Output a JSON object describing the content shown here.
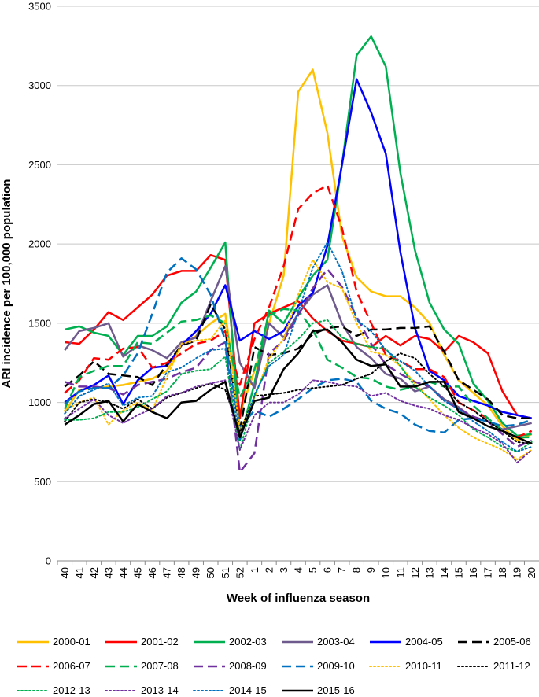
{
  "chart_data": {
    "type": "line",
    "title": "",
    "xlabel": "Week of influenza season",
    "ylabel": "ARI incidence per 100,000 population",
    "ylim": [
      0,
      3500
    ],
    "yticks": [
      0,
      500,
      1000,
      1500,
      2000,
      2500,
      3000,
      3500
    ],
    "grid": "horizontal",
    "legend_position": "bottom",
    "categories": [
      "40",
      "41",
      "42",
      "43",
      "44",
      "45",
      "46",
      "47",
      "48",
      "49",
      "50",
      "51",
      "52",
      "1",
      "2",
      "3",
      "4",
      "5",
      "6",
      "7",
      "8",
      "9",
      "10",
      "11",
      "12",
      "13",
      "14",
      "15",
      "16",
      "17",
      "18",
      "19",
      "20"
    ],
    "series": [
      {
        "name": "2000-01",
        "color": "#FFC000",
        "dash": "solid",
        "width": 2.5,
        "values": [
          940,
          1080,
          1090,
          1100,
          1110,
          1130,
          1150,
          1200,
          1360,
          1420,
          1500,
          1560,
          930,
          1200,
          1500,
          1800,
          2960,
          3100,
          2700,
          2050,
          1790,
          1700,
          1670,
          1670,
          1600,
          1500,
          1300,
          1140,
          1060,
          980,
          850,
          760,
          800
        ]
      },
      {
        "name": "2001-02",
        "color": "#FF0000",
        "dash": "solid",
        "width": 2.5,
        "values": [
          1380,
          1370,
          1460,
          1570,
          1520,
          1600,
          1680,
          1800,
          1830,
          1830,
          1930,
          1900,
          900,
          1500,
          1560,
          1600,
          1640,
          1530,
          1450,
          1390,
          1370,
          1350,
          1420,
          1360,
          1420,
          1400,
          1320,
          1420,
          1380,
          1310,
          1070,
          920,
          900
        ]
      },
      {
        "name": "2002-03",
        "color": "#00B050",
        "dash": "solid",
        "width": 2.5,
        "values": [
          1460,
          1480,
          1440,
          1420,
          1300,
          1420,
          1420,
          1480,
          1630,
          1700,
          1850,
          2010,
          760,
          1120,
          1580,
          1500,
          1660,
          1800,
          1900,
          2500,
          3190,
          3310,
          3120,
          2450,
          1960,
          1630,
          1460,
          1370,
          1120,
          1010,
          870,
          790,
          800
        ]
      },
      {
        "name": "2003-04",
        "color": "#6E5A8C",
        "dash": "solid",
        "width": 2.5,
        "values": [
          1330,
          1450,
          1470,
          1500,
          1290,
          1360,
          1330,
          1280,
          1380,
          1410,
          1640,
          1860,
          1250,
          1090,
          1500,
          1410,
          1560,
          1680,
          1740,
          1500,
          1350,
          1280,
          1180,
          1150,
          1070,
          1100,
          1020,
          970,
          900,
          880,
          830,
          850,
          870
        ]
      },
      {
        "name": "2004-05",
        "color": "#0000FF",
        "dash": "solid",
        "width": 2.5,
        "values": [
          1000,
          1070,
          1110,
          1170,
          990,
          1140,
          1220,
          1230,
          1360,
          1450,
          1560,
          1740,
          1390,
          1450,
          1400,
          1450,
          1610,
          1690,
          1990,
          2500,
          3040,
          2830,
          2570,
          1950,
          1470,
          1200,
          1140,
          1040,
          1010,
          980,
          940,
          920,
          900
        ]
      },
      {
        "name": "2005-06",
        "color": "#000000",
        "dash": "long",
        "width": 2.5,
        "values": [
          1100,
          1170,
          1260,
          1180,
          1170,
          1160,
          1110,
          1240,
          1360,
          1390,
          1620,
          1460,
          820,
          1350,
          1300,
          1310,
          1340,
          1430,
          1470,
          1480,
          1420,
          1460,
          1460,
          1470,
          1470,
          1480,
          1320,
          1140,
          1080,
          1020,
          920,
          900,
          900
        ]
      },
      {
        "name": "2006-07",
        "color": "#FF0000",
        "dash": "long",
        "width": 2.5,
        "values": [
          1060,
          1140,
          1280,
          1270,
          1340,
          1350,
          1220,
          1250,
          1310,
          1370,
          1390,
          1450,
          1110,
          1400,
          1600,
          1860,
          2220,
          2320,
          2370,
          2100,
          1700,
          1500,
          1300,
          1260,
          1210,
          1210,
          1160,
          1000,
          950,
          900,
          820,
          780,
          820
        ]
      },
      {
        "name": "2007-08",
        "color": "#00B050",
        "dash": "long",
        "width": 2.5,
        "values": [
          960,
          1160,
          1200,
          1230,
          1230,
          1380,
          1370,
          1440,
          1510,
          1520,
          1550,
          1500,
          1030,
          1210,
          1550,
          1590,
          1580,
          1460,
          1270,
          1220,
          1160,
          1150,
          1100,
          1080,
          1100,
          1130,
          1100,
          1100,
          980,
          900,
          820,
          780,
          780
        ]
      },
      {
        "name": "2008-09",
        "color": "#7030A0",
        "dash": "long",
        "width": 2.5,
        "values": [
          1130,
          1100,
          1100,
          1090,
          1050,
          1110,
          1130,
          1150,
          1190,
          1220,
          1330,
          1380,
          560,
          680,
          1310,
          1390,
          1550,
          1720,
          1840,
          1730,
          1540,
          1370,
          1240,
          1180,
          1130,
          1100,
          1010,
          960,
          910,
          880,
          800,
          720,
          760
        ]
      },
      {
        "name": "2009-10",
        "color": "#0070C0",
        "dash": "long",
        "width": 2.5,
        "values": [
          990,
          1070,
          1090,
          1090,
          1170,
          1310,
          1560,
          1820,
          1910,
          1840,
          1680,
          1390,
          840,
          950,
          910,
          960,
          1020,
          1090,
          1140,
          1150,
          1130,
          1010,
          960,
          930,
          860,
          820,
          810,
          890,
          900,
          880,
          850,
          860,
          890
        ]
      },
      {
        "name": "2010-11",
        "color": "#FFC000",
        "dash": "dot",
        "width": 2,
        "values": [
          950,
          1000,
          1030,
          860,
          950,
          1000,
          950,
          1160,
          1370,
          1390,
          1400,
          1520,
          820,
          1030,
          1280,
          1400,
          1680,
          1900,
          1760,
          1720,
          1500,
          1320,
          1300,
          1230,
          1120,
          1020,
          920,
          840,
          780,
          740,
          700,
          640,
          700
        ]
      },
      {
        "name": "2011-12",
        "color": "#000000",
        "dash": "dot",
        "width": 2,
        "values": [
          880,
          1000,
          1020,
          1000,
          960,
          1020,
          960,
          1030,
          1060,
          1090,
          1120,
          1080,
          810,
          1040,
          1050,
          1060,
          1080,
          1090,
          1100,
          1110,
          1150,
          1180,
          1260,
          1310,
          1280,
          1180,
          1100,
          1000,
          950,
          880,
          820,
          750,
          740
        ]
      },
      {
        "name": "2012-13",
        "color": "#00B050",
        "dash": "dot",
        "width": 2,
        "values": [
          890,
          890,
          900,
          940,
          940,
          970,
          1020,
          1070,
          1180,
          1200,
          1210,
          1290,
          700,
          1040,
          1250,
          1320,
          1400,
          1500,
          1520,
          1410,
          1370,
          1350,
          1340,
          1230,
          1100,
          1030,
          980,
          920,
          830,
          780,
          720,
          690,
          750
        ]
      },
      {
        "name": "2013-14",
        "color": "#7030A0",
        "dash": "dot",
        "width": 2,
        "values": [
          900,
          960,
          1020,
          920,
          870,
          920,
          960,
          1040,
          1060,
          1100,
          1120,
          1140,
          700,
          920,
          1000,
          1000,
          1050,
          1140,
          1130,
          1110,
          1100,
          1040,
          1060,
          1010,
          980,
          960,
          920,
          890,
          840,
          800,
          740,
          620,
          700
        ]
      },
      {
        "name": "2014-15",
        "color": "#0070C0",
        "dash": "dot",
        "width": 2,
        "values": [
          930,
          1040,
          1080,
          1120,
          980,
          1030,
          1040,
          1190,
          1220,
          1280,
          1330,
          1340,
          760,
          1050,
          1230,
          1300,
          1570,
          1850,
          2010,
          1830,
          1520,
          1450,
          1330,
          1260,
          1200,
          1100,
          1010,
          960,
          880,
          820,
          750,
          690,
          720
        ]
      },
      {
        "name": "2015-16",
        "color": "#000000",
        "dash": "solid",
        "width": 2.5,
        "values": [
          860,
          920,
          990,
          1010,
          880,
          990,
          940,
          900,
          1000,
          1010,
          1080,
          1130,
          780,
          1010,
          1030,
          1210,
          1310,
          1450,
          1460,
          1380,
          1270,
          1230,
          1240,
          1100,
          1100,
          1130,
          1130,
          940,
          900,
          850,
          820,
          780,
          740
        ]
      }
    ]
  }
}
